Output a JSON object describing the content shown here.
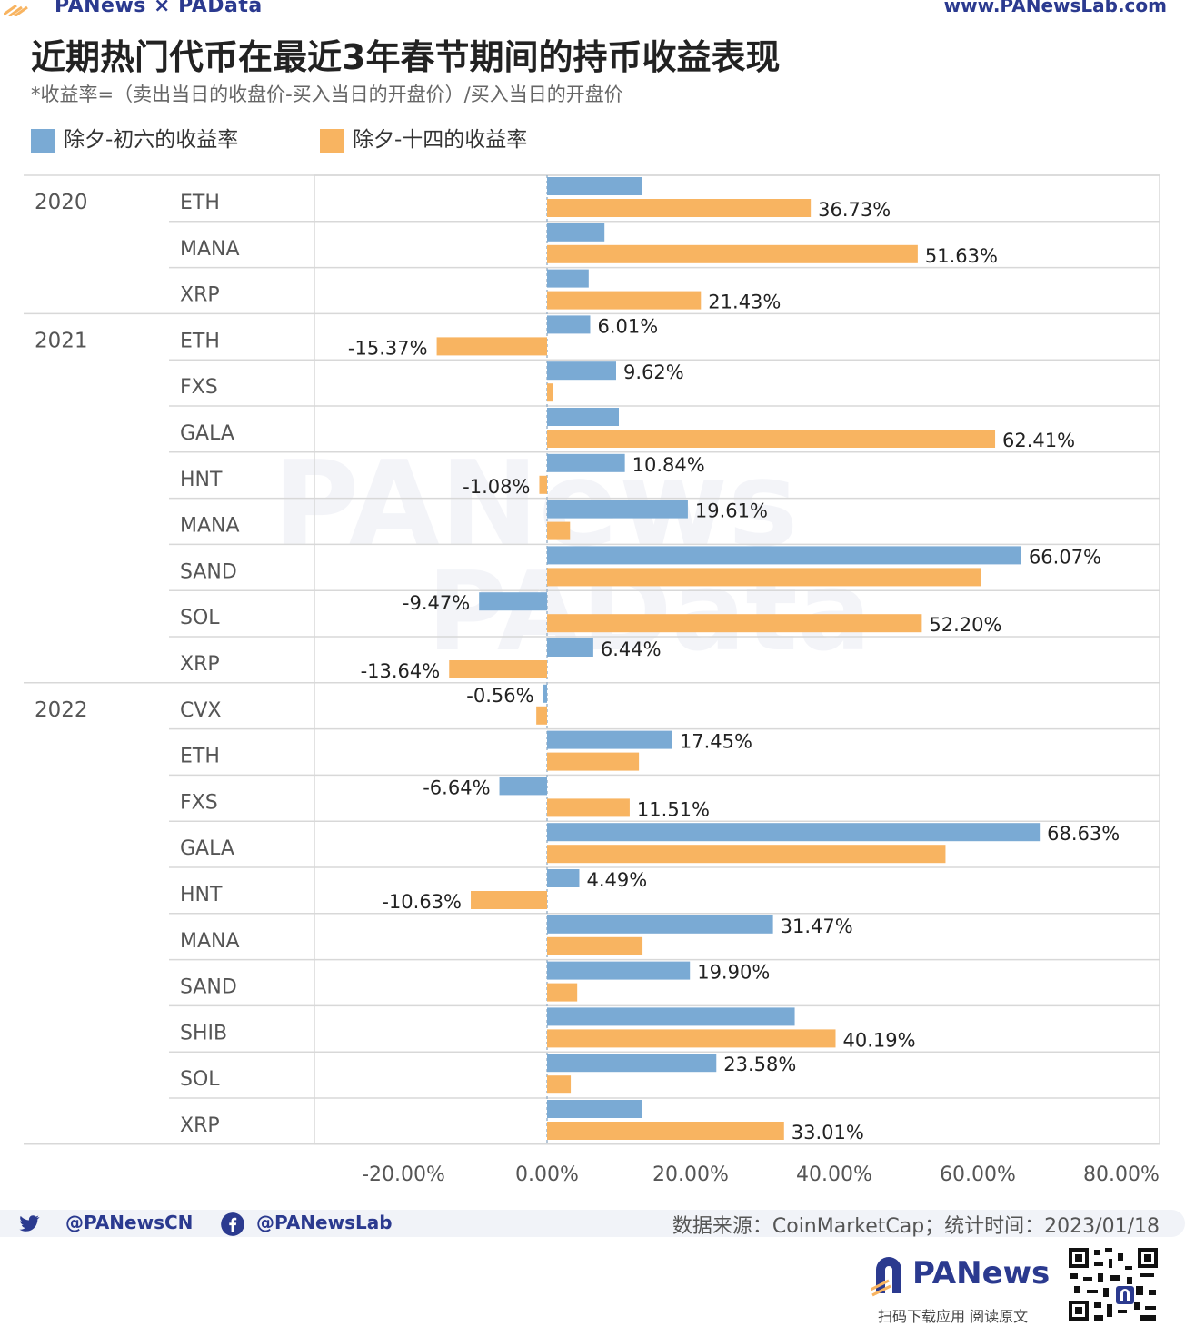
{
  "header": {
    "brand": "PANews × PAData",
    "site": "www.PANewsLab.com",
    "title": "近期热门代币在最近3年春节期间的持币收益表现",
    "subtitle": "*收益率=（卖出当日的收盘价-买入当日的开盘价）/买入当日的开盘价"
  },
  "legend": [
    {
      "label": "除夕-初六的收益率",
      "color": "#7aaad4"
    },
    {
      "label": "除夕-十四的收益率",
      "color": "#f8b461"
    }
  ],
  "chart_data": {
    "type": "bar",
    "orientation": "horizontal",
    "xlim": [
      -30,
      85
    ],
    "xticks": [
      -20,
      0,
      20,
      40,
      60,
      80
    ],
    "xtick_labels": [
      "-20.00%",
      "0.00%",
      "20.00%",
      "40.00%",
      "60.00%",
      "80.00%"
    ],
    "legend_placement": "top-left",
    "groups": [
      {
        "year": "2020",
        "rows": [
          {
            "token": "ETH",
            "s1": 13.2,
            "s2": 36.73,
            "label1": "",
            "label2": "36.73%"
          },
          {
            "token": "MANA",
            "s1": 8.0,
            "s2": 51.63,
            "label1": "",
            "label2": "51.63%"
          },
          {
            "token": "XRP",
            "s1": 5.8,
            "s2": 21.43,
            "label1": "",
            "label2": "21.43%"
          }
        ]
      },
      {
        "year": "2021",
        "rows": [
          {
            "token": "ETH",
            "s1": 6.01,
            "s2": -15.37,
            "label1": "6.01%",
            "label2": "-15.37%"
          },
          {
            "token": "FXS",
            "s1": 9.62,
            "s2": 0.8,
            "label1": "9.62%",
            "label2": ""
          },
          {
            "token": "GALA",
            "s1": 10.0,
            "s2": 62.41,
            "label1": "",
            "label2": "62.41%"
          },
          {
            "token": "HNT",
            "s1": 10.84,
            "s2": -1.08,
            "label1": "10.84%",
            "label2": "-1.08%"
          },
          {
            "token": "MANA",
            "s1": 19.61,
            "s2": 3.2,
            "label1": "19.61%",
            "label2": ""
          },
          {
            "token": "SAND",
            "s1": 66.07,
            "s2": 60.5,
            "label1": "66.07%",
            "label2": ""
          },
          {
            "token": "SOL",
            "s1": -9.47,
            "s2": 52.2,
            "label1": "-9.47%",
            "label2": "52.20%"
          },
          {
            "token": "XRP",
            "s1": 6.44,
            "s2": -13.64,
            "label1": "6.44%",
            "label2": "-13.64%"
          }
        ]
      },
      {
        "year": "2022",
        "rows": [
          {
            "token": "CVX",
            "s1": -0.56,
            "s2": -1.5,
            "label1": "-0.56%",
            "label2": ""
          },
          {
            "token": "ETH",
            "s1": 17.45,
            "s2": 12.8,
            "label1": "17.45%",
            "label2": ""
          },
          {
            "token": "FXS",
            "s1": -6.64,
            "s2": 11.51,
            "label1": "-6.64%",
            "label2": "11.51%"
          },
          {
            "token": "GALA",
            "s1": 68.63,
            "s2": 55.5,
            "label1": "68.63%",
            "label2": ""
          },
          {
            "token": "HNT",
            "s1": 4.49,
            "s2": -10.63,
            "label1": "4.49%",
            "label2": "-10.63%"
          },
          {
            "token": "MANA",
            "s1": 31.47,
            "s2": 13.3,
            "label1": "31.47%",
            "label2": ""
          },
          {
            "token": "SAND",
            "s1": 19.9,
            "s2": 4.2,
            "label1": "19.90%",
            "label2": ""
          },
          {
            "token": "SHIB",
            "s1": 34.5,
            "s2": 40.19,
            "label1": "",
            "label2": "40.19%"
          },
          {
            "token": "SOL",
            "s1": 23.58,
            "s2": 3.3,
            "label1": "23.58%",
            "label2": ""
          },
          {
            "token": "XRP",
            "s1": 13.2,
            "s2": 33.01,
            "label1": "",
            "label2": "33.01%"
          }
        ]
      }
    ]
  },
  "footer": {
    "twitter": "@PANewsCN",
    "facebook": "@PANewsLab",
    "source": "数据来源：CoinMarketCap；统计时间：2023/01/18",
    "logo_name": "PANews",
    "cta": "扫码下载应用  阅读原文"
  }
}
